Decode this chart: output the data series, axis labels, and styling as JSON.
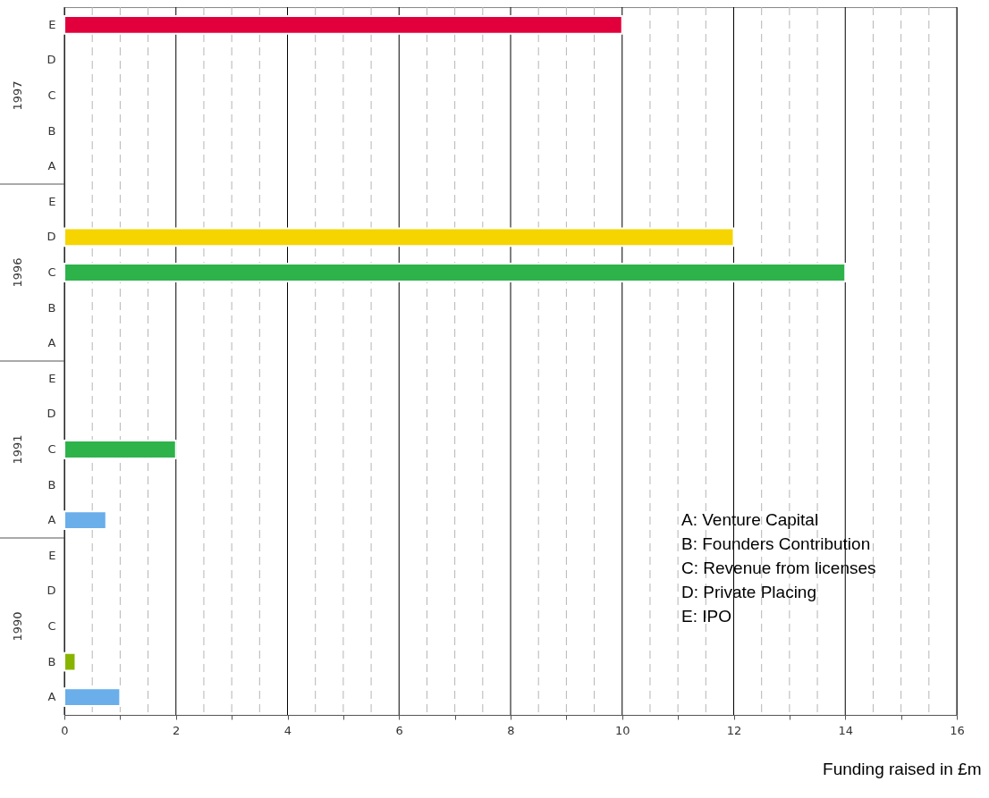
{
  "chart_data": {
    "type": "bar",
    "orientation": "horizontal",
    "categories": [
      "E",
      "D",
      "C",
      "B",
      "A",
      "E",
      "D",
      "C",
      "B",
      "A",
      "E",
      "D",
      "C",
      "B",
      "A",
      "E",
      "D",
      "C",
      "B",
      "A"
    ],
    "values": [
      10,
      null,
      null,
      null,
      null,
      null,
      12,
      14,
      null,
      null,
      null,
      null,
      2,
      null,
      0.75,
      null,
      null,
      null,
      0.2,
      1
    ],
    "colors": [
      "#e2003c",
      null,
      null,
      null,
      null,
      null,
      "#f5d400",
      "#2db34a",
      null,
      null,
      null,
      null,
      "#2db34a",
      null,
      "#6aaeea",
      null,
      null,
      null,
      "#88b400",
      "#6aaeea"
    ],
    "xlabel": "Funding raised in £m",
    "xlim": [
      0,
      16
    ],
    "xticks": [
      0,
      {
        "value": 0.5,
        "label": null
      },
      {
        "value": 1,
        "label": null
      },
      {
        "value": 1.5,
        "label": null
      },
      2,
      {
        "value": 2.5,
        "label": null
      },
      {
        "value": 3,
        "label": null
      },
      {
        "value": 3.5,
        "label": null
      },
      4,
      {
        "value": 4.5,
        "label": null
      },
      {
        "value": 5,
        "label": null
      },
      {
        "value": 5.5,
        "label": null
      },
      6,
      {
        "value": 6.5,
        "label": null
      },
      {
        "value": 7,
        "label": null
      },
      {
        "value": 7.5,
        "label": null
      },
      8,
      {
        "value": 8.5,
        "label": null
      },
      {
        "value": 9,
        "label": null
      },
      {
        "value": 9.5,
        "label": null
      },
      10,
      {
        "value": 10.5,
        "label": null
      },
      {
        "value": 11,
        "label": null
      },
      {
        "value": 11.5,
        "label": null
      },
      12,
      {
        "value": 12.5,
        "label": null
      },
      {
        "value": 13,
        "label": null
      },
      {
        "value": 13.5,
        "label": null
      },
      14,
      {
        "value": 14.5,
        "label": null
      },
      {
        "value": 15,
        "label": null
      },
      {
        "value": 15.5,
        "label": null
      },
      16
    ],
    "grid": true,
    "annotations": [
      "1997",
      "1996",
      "1991",
      "1990",
      "A: Venture Capital",
      "B: Founders Contribution",
      "C: Revenue from licenses",
      "D: Private Placing",
      "E: IPO"
    ]
  }
}
